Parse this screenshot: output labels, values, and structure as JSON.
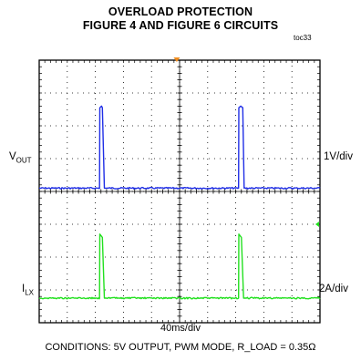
{
  "title_line1": "OVERLOAD PROTECTION",
  "title_line2": "FIGURE 4 AND FIGURE 6 CIRCUITS",
  "figure_id": "toc33",
  "timebase": "40ms/div",
  "conditions": "CONDITIONS: 5V OUTPUT, PWM MODE, R_LOAD = 0.35Ω",
  "colors": {
    "vout": "#1f2ee6",
    "ilx": "#22e01f",
    "trigger": "#f08c1e"
  },
  "chart_data": {
    "type": "line",
    "title": "OVERLOAD PROTECTION FIGURE 4 AND FIGURE 6 CIRCUITS",
    "xlabel": "40ms/div",
    "grid": true,
    "x_divisions": 10,
    "y_divisions": 8,
    "series": [
      {
        "name": "VOUT",
        "label_main": "V",
        "label_sub": "OUT",
        "scale": "1V/div",
        "baseline_div": 4.1,
        "x": [
          0,
          2.15,
          2.16,
          2.22,
          2.25,
          2.32,
          2.4,
          7.1,
          7.11,
          7.18,
          7.25,
          7.3,
          10
        ],
        "values": [
          0,
          0,
          2.45,
          2.5,
          2.45,
          0,
          0,
          0,
          2.45,
          2.5,
          2.45,
          0,
          0
        ]
      },
      {
        "name": "ILX",
        "label_main": "I",
        "label_sub": "LX",
        "scale": "2A/div",
        "baseline_div": 0.75,
        "x": [
          0,
          2.15,
          2.16,
          2.25,
          2.32,
          2.4,
          7.1,
          7.11,
          7.2,
          7.28,
          7.35,
          10
        ],
        "values": [
          0,
          0,
          1.95,
          1.85,
          0,
          0,
          0,
          1.95,
          1.85,
          0,
          0,
          0
        ]
      }
    ]
  }
}
